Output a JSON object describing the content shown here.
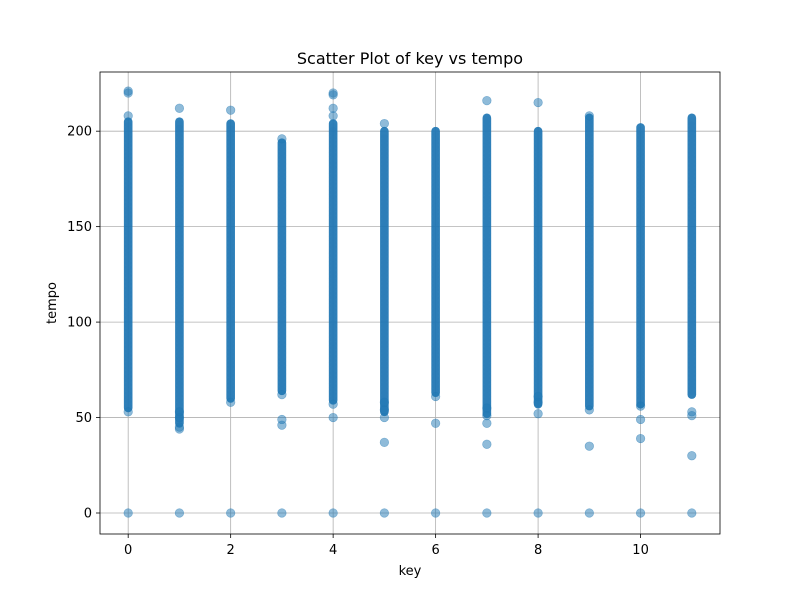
{
  "chart_data": {
    "type": "scatter",
    "title": "Scatter Plot of key vs tempo",
    "xlabel": "key",
    "ylabel": "tempo",
    "xlim": [
      -0.55,
      11.55
    ],
    "ylim": [
      -11,
      231
    ],
    "xticks": [
      0,
      2,
      4,
      6,
      8,
      10
    ],
    "yticks": [
      0,
      50,
      100,
      150,
      200
    ],
    "grid": true,
    "marker_color": "#1f77b4",
    "marker_alpha": 0.5,
    "dense_ranges": [
      {
        "x": 0,
        "y_from": 55,
        "y_to": 205
      },
      {
        "x": 1,
        "y_from": 47,
        "y_to": 205
      },
      {
        "x": 2,
        "y_from": 60,
        "y_to": 204
      },
      {
        "x": 3,
        "y_from": 64,
        "y_to": 194
      },
      {
        "x": 4,
        "y_from": 59,
        "y_to": 204
      },
      {
        "x": 5,
        "y_from": 53,
        "y_to": 200
      },
      {
        "x": 6,
        "y_from": 63,
        "y_to": 200
      },
      {
        "x": 7,
        "y_from": 52,
        "y_to": 207
      },
      {
        "x": 8,
        "y_from": 57,
        "y_to": 200
      },
      {
        "x": 9,
        "y_from": 56,
        "y_to": 207
      },
      {
        "x": 10,
        "y_from": 57,
        "y_to": 202
      },
      {
        "x": 11,
        "y_from": 62,
        "y_to": 207
      }
    ],
    "points": [
      {
        "x": 0,
        "y": 0
      },
      {
        "x": 0,
        "y": 220
      },
      {
        "x": 0,
        "y": 221
      },
      {
        "x": 0,
        "y": 208
      },
      {
        "x": 0,
        "y": 53
      },
      {
        "x": 1,
        "y": 0
      },
      {
        "x": 1,
        "y": 212
      },
      {
        "x": 1,
        "y": 44
      },
      {
        "x": 1,
        "y": 45
      },
      {
        "x": 1,
        "y": 50
      },
      {
        "x": 1,
        "y": 53
      },
      {
        "x": 2,
        "y": 0
      },
      {
        "x": 2,
        "y": 211
      },
      {
        "x": 2,
        "y": 58
      },
      {
        "x": 3,
        "y": 0
      },
      {
        "x": 3,
        "y": 196
      },
      {
        "x": 3,
        "y": 46
      },
      {
        "x": 3,
        "y": 49
      },
      {
        "x": 3,
        "y": 62
      },
      {
        "x": 4,
        "y": 0
      },
      {
        "x": 4,
        "y": 220
      },
      {
        "x": 4,
        "y": 219
      },
      {
        "x": 4,
        "y": 212
      },
      {
        "x": 4,
        "y": 208
      },
      {
        "x": 4,
        "y": 50
      },
      {
        "x": 4,
        "y": 57
      },
      {
        "x": 5,
        "y": 0
      },
      {
        "x": 5,
        "y": 204
      },
      {
        "x": 5,
        "y": 37
      },
      {
        "x": 5,
        "y": 50
      },
      {
        "x": 5,
        "y": 54
      },
      {
        "x": 5,
        "y": 58
      },
      {
        "x": 6,
        "y": 0
      },
      {
        "x": 6,
        "y": 47
      },
      {
        "x": 6,
        "y": 61
      },
      {
        "x": 7,
        "y": 0
      },
      {
        "x": 7,
        "y": 216
      },
      {
        "x": 7,
        "y": 36
      },
      {
        "x": 7,
        "y": 47
      },
      {
        "x": 7,
        "y": 51
      },
      {
        "x": 7,
        "y": 55
      },
      {
        "x": 8,
        "y": 0
      },
      {
        "x": 8,
        "y": 215
      },
      {
        "x": 8,
        "y": 52
      },
      {
        "x": 8,
        "y": 58
      },
      {
        "x": 8,
        "y": 61
      },
      {
        "x": 9,
        "y": 0
      },
      {
        "x": 9,
        "y": 208
      },
      {
        "x": 9,
        "y": 35
      },
      {
        "x": 9,
        "y": 54
      },
      {
        "x": 10,
        "y": 0
      },
      {
        "x": 10,
        "y": 39
      },
      {
        "x": 10,
        "y": 49
      },
      {
        "x": 10,
        "y": 56
      },
      {
        "x": 11,
        "y": 0
      },
      {
        "x": 11,
        "y": 30
      },
      {
        "x": 11,
        "y": 51
      },
      {
        "x": 11,
        "y": 53
      }
    ]
  }
}
